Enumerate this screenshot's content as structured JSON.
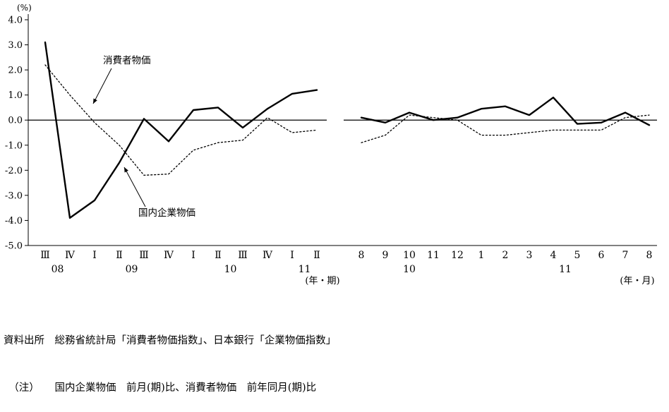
{
  "chart_data": {
    "type": "line",
    "unit_label": "(%)",
    "ylim": [
      -5.0,
      4.0
    ],
    "grid": false,
    "ytick_labels": [
      "4.0",
      "3.0",
      "2.0",
      "1.0",
      "0.0",
      "-1.0",
      "-2.0",
      "-3.0",
      "-4.0",
      "-5.0"
    ],
    "panels": [
      {
        "name": "quarterly",
        "x_axis_label": "(年・期)",
        "categories": [
          "Ⅲ",
          "Ⅳ",
          "Ⅰ",
          "Ⅱ",
          "Ⅲ",
          "Ⅳ",
          "Ⅰ",
          "Ⅱ",
          "Ⅲ",
          "Ⅳ",
          "Ⅰ",
          "Ⅱ"
        ],
        "year_labels": [
          {
            "text": "08",
            "pos": 0.5
          },
          {
            "text": "09",
            "pos": 3.5
          },
          {
            "text": "10",
            "pos": 7.5
          },
          {
            "text": "11",
            "pos": 10.5
          }
        ],
        "series": [
          {
            "name": "国内企業物価",
            "style": "solid",
            "values": [
              3.1,
              -3.9,
              -3.2,
              -1.7,
              0.05,
              -0.85,
              0.4,
              0.5,
              -0.3,
              0.45,
              1.05,
              1.2
            ]
          },
          {
            "name": "消費者物価",
            "style": "dashed",
            "values": [
              2.2,
              1.0,
              -0.1,
              -1.0,
              -2.2,
              -2.15,
              -1.2,
              -0.9,
              -0.8,
              0.1,
              -0.5,
              -0.4
            ]
          }
        ]
      },
      {
        "name": "monthly",
        "x_axis_label": "(年・月)",
        "categories": [
          "8",
          "9",
          "10",
          "11",
          "12",
          "1",
          "2",
          "3",
          "4",
          "5",
          "6",
          "7",
          "8"
        ],
        "year_labels": [
          {
            "text": "10",
            "pos": 2
          },
          {
            "text": "11",
            "pos": 8.5
          }
        ],
        "series": [
          {
            "name": "国内企業物価",
            "style": "solid",
            "values": [
              0.1,
              -0.1,
              0.3,
              0.0,
              0.1,
              0.45,
              0.55,
              0.2,
              0.9,
              -0.15,
              -0.1,
              0.3,
              -0.2
            ]
          },
          {
            "name": "消費者物価",
            "style": "dashed",
            "values": [
              -0.9,
              -0.6,
              0.2,
              0.1,
              0.0,
              -0.6,
              -0.6,
              -0.5,
              -0.4,
              -0.4,
              -0.4,
              0.1,
              0.2
            ]
          }
        ]
      }
    ],
    "annotations": [
      {
        "text": "消費者物価",
        "target_style": "dashed"
      },
      {
        "text": "国内企業物価",
        "target_style": "solid"
      }
    ]
  },
  "footer": {
    "source": "資料出所　総務省統計局「消費者物価指数」、日本銀行「企業物価指数」",
    "note": "　（注）　　国内企業物価　前月(期)比、消費者物価　前年同月(期)比"
  }
}
